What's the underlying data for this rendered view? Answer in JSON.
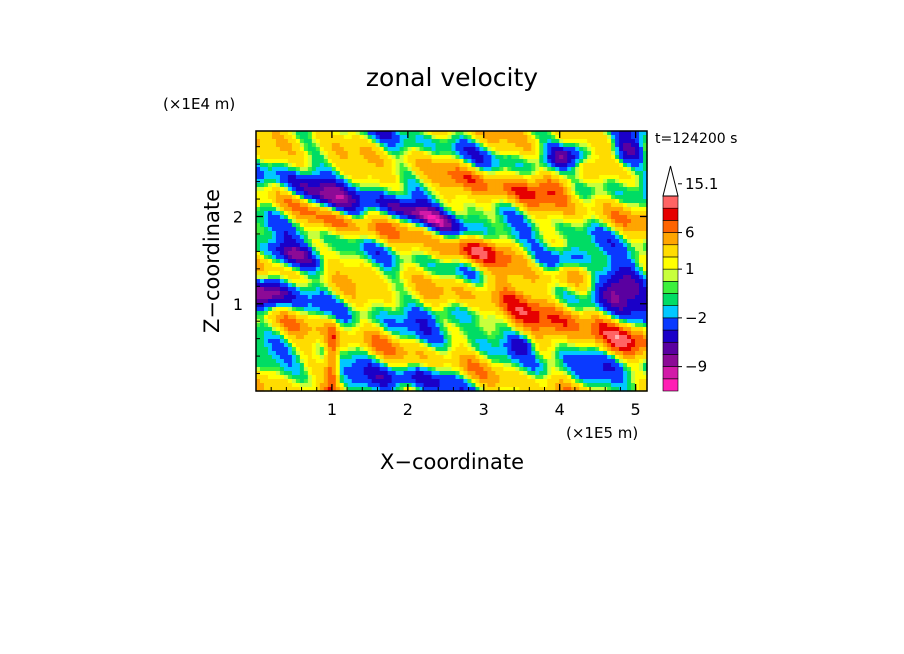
{
  "chart_data": {
    "type": "heatmap",
    "title": "zonal velocity",
    "xlabel": "X−coordinate",
    "ylabel": "Z−coordinate",
    "x_scale_label": "(×1E5 m)",
    "y_scale_label": "(×1E4 m)",
    "time_label": "t=124200 s",
    "xlim": [
      0,
      5.15
    ],
    "ylim": [
      0,
      2.98
    ],
    "x_ticks": [
      1,
      2,
      3,
      4,
      5
    ],
    "y_ticks": [
      1,
      2
    ],
    "x_tick_labels": [
      "1",
      "2",
      "3",
      "4",
      "5"
    ],
    "y_tick_labels": [
      "1",
      "2"
    ],
    "colorbar": {
      "levels": [
        -12,
        -10.5,
        -9,
        -7.5,
        -6,
        -4,
        -2,
        -1,
        0,
        0.5,
        1,
        2,
        4,
        6,
        8,
        10,
        12,
        15.1
      ],
      "colors": [
        "#ff1fb4",
        "#d21aa8",
        "#8c0a96",
        "#5a00a0",
        "#1a00c8",
        "#0a3aff",
        "#00c8ff",
        "#00dc64",
        "#3cf03c",
        "#c8ff3c",
        "#ffff00",
        "#ffdc00",
        "#ffa500",
        "#ff6400",
        "#e60000",
        "#ff6464",
        "#ffb4b4"
      ],
      "extend_max": true,
      "tick_labels": [
        "15.1",
        "6",
        "1",
        "−2",
        "−9"
      ],
      "tick_values": [
        15.1,
        6,
        1,
        -2,
        -9
      ]
    },
    "field": {
      "base": 1.2,
      "features": [
        {
          "x": 0.9,
          "z": 2.2,
          "amp": -9,
          "sx": 0.35,
          "sz": 0.11,
          "tilt": -0.35
        },
        {
          "x": 2.2,
          "z": 2.0,
          "amp": -8,
          "sx": 0.55,
          "sz": 0.09,
          "tilt": -0.28
        },
        {
          "x": 0.5,
          "z": 1.55,
          "amp": -8,
          "sx": 0.3,
          "sz": 0.1,
          "tilt": -0.2
        },
        {
          "x": 0.15,
          "z": 1.1,
          "amp": -9,
          "sx": 0.2,
          "sz": 0.13,
          "tilt": 0.0
        },
        {
          "x": 4.75,
          "z": 1.15,
          "amp": -11,
          "sx": 0.3,
          "sz": 0.18,
          "tilt": 0.0
        },
        {
          "x": 4.0,
          "z": 1.5,
          "amp": -7,
          "sx": 0.28,
          "sz": 0.1,
          "tilt": 0.0
        },
        {
          "x": 4.1,
          "z": 2.7,
          "amp": -9,
          "sx": 0.2,
          "sz": 0.1,
          "tilt": 0.0
        },
        {
          "x": 4.9,
          "z": 2.75,
          "amp": -7,
          "sx": 0.15,
          "sz": 0.12,
          "tilt": 0.0
        },
        {
          "x": 3.4,
          "z": 1.15,
          "amp": 5,
          "sx": 0.55,
          "sz": 0.25,
          "tilt": 0.0
        },
        {
          "x": 4.2,
          "z": 0.85,
          "amp": 4,
          "sx": 0.4,
          "sz": 0.2,
          "tilt": 0.0
        },
        {
          "x": 4.0,
          "z": 2.4,
          "amp": 7,
          "sx": 0.25,
          "sz": 0.12,
          "tilt": 0.0
        },
        {
          "x": 3.1,
          "z": 2.35,
          "amp": 4,
          "sx": 0.4,
          "sz": 0.12,
          "tilt": -0.3
        },
        {
          "x": 1.2,
          "z": 1.9,
          "amp": 5,
          "sx": 0.4,
          "sz": 0.1,
          "tilt": -0.3
        },
        {
          "x": 2.8,
          "z": 1.6,
          "amp": 5,
          "sx": 0.3,
          "sz": 0.1,
          "tilt": 0.0
        },
        {
          "x": 4.8,
          "z": 0.55,
          "amp": 5,
          "sx": 0.3,
          "sz": 0.15,
          "tilt": 0.0
        },
        {
          "x": 1.0,
          "z": 0.35,
          "amp": 7,
          "sx": 0.06,
          "sz": 0.3,
          "tilt": 0.0
        },
        {
          "x": 2.6,
          "z": 0.9,
          "amp": -5,
          "sx": 0.35,
          "sz": 0.12,
          "tilt": 0.0
        },
        {
          "x": 3.5,
          "z": 0.55,
          "amp": -4,
          "sx": 0.12,
          "sz": 0.08,
          "tilt": 0.0
        },
        {
          "x": 1.9,
          "z": 0.15,
          "amp": -4,
          "sx": 0.5,
          "sz": 0.1,
          "tilt": 0.0
        },
        {
          "x": 4.4,
          "z": 0.3,
          "amp": -3,
          "sx": 0.5,
          "sz": 0.15,
          "tilt": 0.0
        }
      ],
      "waves": [
        {
          "kx": 1.8,
          "kz": 9.0,
          "amp": 2.5,
          "phase": 0.3
        },
        {
          "kx": 6.0,
          "kz": 4.0,
          "amp": 1.8,
          "phase": 1.7
        },
        {
          "kx": 12.0,
          "kz": 9.0,
          "amp": 1.2,
          "phase": 2.3
        },
        {
          "kx": 3.5,
          "kz": 14.0,
          "amp": 1.0,
          "phase": 0.9
        }
      ]
    }
  }
}
